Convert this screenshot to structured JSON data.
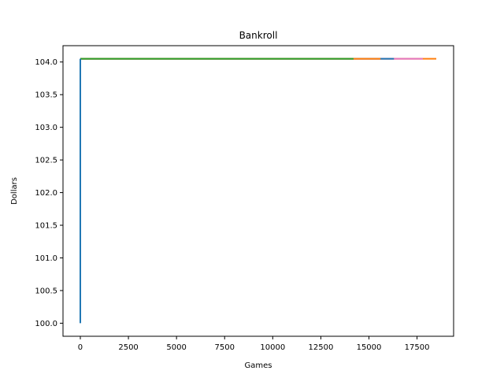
{
  "chart_data": {
    "type": "line",
    "title": "Bankroll",
    "xlabel": "Games",
    "ylabel": "Dollars",
    "xlim": [
      -900,
      19400
    ],
    "ylim": [
      99.8,
      104.25
    ],
    "xticks": [
      0,
      2500,
      5000,
      7500,
      10000,
      12500,
      15000,
      17500
    ],
    "yticks": [
      100.0,
      100.5,
      101.0,
      101.5,
      102.0,
      102.5,
      103.0,
      103.5,
      104.0
    ],
    "grid": false,
    "legend": "none",
    "series": [
      {
        "color": "#ff7f0e",
        "x": [
          0,
          18500
        ],
        "y": [
          104.05,
          104.05
        ]
      },
      {
        "color": "#e377c2",
        "x": [
          0,
          17800
        ],
        "y": [
          104.05,
          104.05
        ]
      },
      {
        "color": "#1f77b4",
        "x": [
          0,
          16300
        ],
        "y": [
          104.05,
          104.05
        ]
      },
      {
        "color": "#ff7f0e",
        "x": [
          0,
          15600
        ],
        "y": [
          104.05,
          104.05
        ]
      },
      {
        "color": "#2ca02c",
        "x": [
          0,
          14200
        ],
        "y": [
          104.05,
          104.05
        ]
      },
      {
        "color": "#1f77b4",
        "x": [
          0,
          0
        ],
        "y": [
          100.0,
          104.05
        ]
      }
    ]
  }
}
